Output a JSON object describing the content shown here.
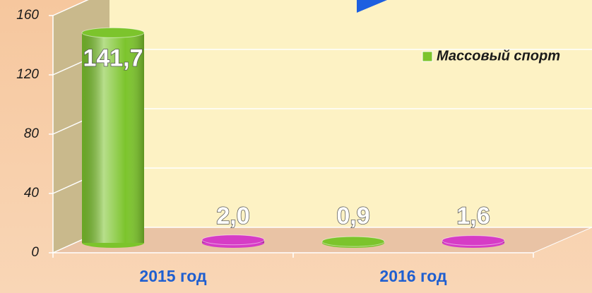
{
  "chart_data": {
    "type": "bar3d",
    "categories": [
      "2015 год",
      "2016 год"
    ],
    "series": [
      {
        "name": "Массовый спорт",
        "color": "#7cc42c",
        "values": [
          141.7,
          0.9
        ],
        "value_labels": [
          "141,7",
          "0,9"
        ]
      },
      {
        "color": "#d63cc6",
        "values": [
          2.0,
          1.6
        ],
        "value_labels": [
          "2,0",
          "1,6"
        ]
      }
    ],
    "ylim": [
      0,
      160
    ],
    "yticks": [
      0,
      40,
      80,
      120,
      160
    ],
    "grid": true,
    "legend": "right"
  }
}
